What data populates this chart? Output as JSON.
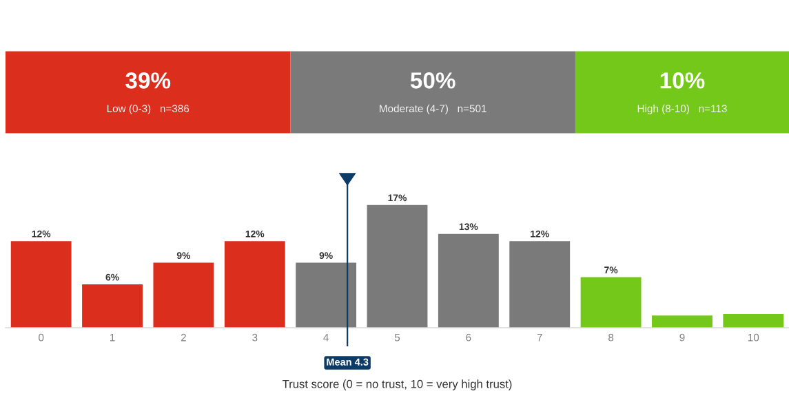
{
  "chart_data": [
    {
      "type": "other",
      "categories": [
        "Low (0-3)   n=386",
        "Moderate (4-7)   n=501",
        "High (8-10)   n=113"
      ],
      "value_labels": [
        "39%",
        "50%",
        "10%"
      ],
      "colors": [
        "#db2e1c",
        "#7a7a7a",
        "#74c81a"
      ]
    },
    {
      "type": "bar",
      "x": [
        0,
        1,
        2,
        3,
        4,
        5,
        6,
        7,
        8,
        9,
        10
      ],
      "values": [
        12,
        6,
        9,
        12,
        9,
        17,
        13,
        12,
        7,
        1.7,
        1.9
      ],
      "colors": [
        "#db2e1c",
        "#db2e1c",
        "#db2e1c",
        "#db2e1c",
        "#7a7a7a",
        "#7a7a7a",
        "#7a7a7a",
        "#7a7a7a",
        "#74c81a",
        "#74c81a",
        "#74c81a"
      ],
      "value_labels": [
        "12%",
        "6%",
        "9%",
        "12%",
        "9%",
        "17%",
        "13%",
        "12%",
        "7%",
        null,
        null
      ],
      "xlim": [
        -0.5,
        10.5
      ],
      "xticks": [
        0,
        1,
        2,
        3,
        4,
        5,
        6,
        7,
        8,
        9,
        10
      ],
      "ylim": [
        0,
        20.5
      ],
      "tick_labels": "x",
      "xlabel": "Trust score (0 = no trust, 10 = very high trust)",
      "ref_lines": [
        {
          "axis": "x",
          "value": 4.3,
          "label": "Mean 4.3",
          "color": "#0b3b66"
        }
      ]
    }
  ]
}
